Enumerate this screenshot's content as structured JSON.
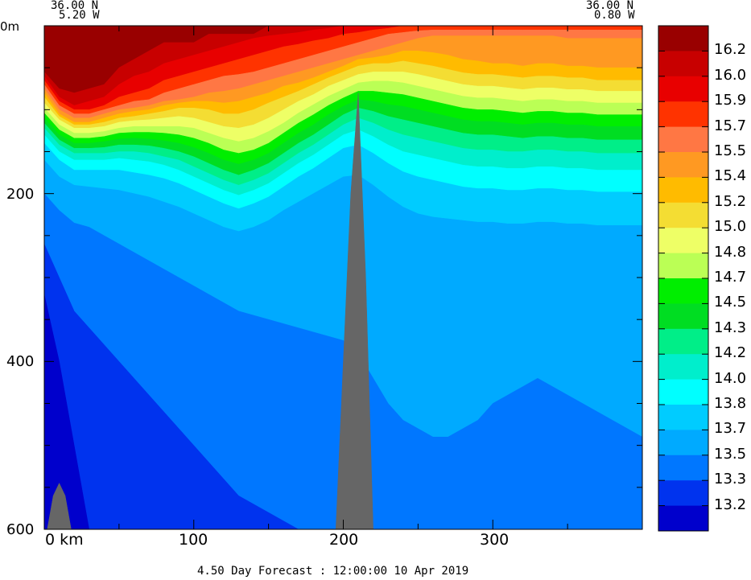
{
  "chart_data": {
    "type": "heatmap",
    "title": "",
    "xlabel": "",
    "ylabel": "",
    "xlim": [
      0,
      400
    ],
    "ylim": [
      600,
      0
    ],
    "x_unit_label": "0 km",
    "x_ticks": [
      "100",
      "200",
      "300"
    ],
    "y_ticks": [
      "0m",
      "200",
      "400",
      "600"
    ],
    "left_coord": {
      "lat": "36.00 N",
      "lon": "5.20 W"
    },
    "right_coord": {
      "lat": "36.00 N",
      "lon": "0.80 W"
    },
    "footer": "4.50 Day Forecast : 12:00:00  10 Apr 2019",
    "colorbar": {
      "labels": [
        "16.2",
        "16.0",
        "15.9",
        "15.7",
        "15.5",
        "15.4",
        "15.2",
        "15.0",
        "14.8",
        "14.7",
        "14.5",
        "14.3",
        "14.2",
        "14.0",
        "13.8",
        "13.7",
        "13.5",
        "13.3",
        "13.2"
      ],
      "colors": [
        "#990000",
        "#c80000",
        "#e80000",
        "#ff3300",
        "#ff7744",
        "#ff9922",
        "#ffbb00",
        "#f4dd33",
        "#eeff66",
        "#bbff55",
        "#00ee00",
        "#00dd22",
        "#00ee88",
        "#00eecc",
        "#00ffff",
        "#00ccff",
        "#00aaff",
        "#0077ff",
        "#0033ee",
        "#0000cc"
      ]
    },
    "x_samples": [
      0,
      10,
      20,
      30,
      40,
      50,
      60,
      70,
      80,
      90,
      100,
      110,
      120,
      130,
      140,
      150,
      160,
      170,
      180,
      190,
      200,
      210,
      220,
      230,
      240,
      250,
      260,
      270,
      280,
      290,
      300,
      310,
      320,
      330,
      340,
      350,
      360,
      370,
      380,
      390,
      400
    ],
    "isolines_depth_m": {
      "16.2": [
        55,
        75,
        80,
        75,
        70,
        50,
        40,
        30,
        20,
        20,
        20,
        10,
        10,
        10,
        10,
        0,
        0,
        0,
        0,
        0,
        0,
        0,
        0,
        0,
        0,
        0,
        0,
        0,
        0,
        0,
        0,
        0,
        0,
        0,
        0,
        0,
        0,
        0,
        0,
        0,
        0
      ],
      "16.0": [
        60,
        85,
        95,
        90,
        85,
        70,
        60,
        55,
        45,
        40,
        35,
        30,
        25,
        20,
        15,
        12,
        10,
        8,
        5,
        3,
        0,
        0,
        0,
        0,
        0,
        0,
        0,
        0,
        0,
        0,
        0,
        0,
        0,
        0,
        0,
        0,
        0,
        0,
        0,
        0,
        0
      ],
      "15.9": [
        65,
        90,
        100,
        100,
        95,
        85,
        80,
        75,
        65,
        60,
        55,
        50,
        45,
        40,
        35,
        30,
        25,
        22,
        18,
        15,
        10,
        8,
        5,
        3,
        0,
        0,
        0,
        0,
        0,
        0,
        0,
        0,
        0,
        0,
        0,
        0,
        0,
        0,
        0,
        0,
        0
      ],
      "15.7": [
        70,
        95,
        105,
        105,
        100,
        95,
        90,
        88,
        80,
        75,
        70,
        65,
        60,
        58,
        55,
        50,
        45,
        40,
        35,
        30,
        25,
        20,
        15,
        10,
        8,
        6,
        5,
        5,
        5,
        5,
        5,
        5,
        5,
        5,
        5,
        5,
        5,
        5,
        5,
        5,
        5
      ],
      "15.5": [
        75,
        100,
        110,
        110,
        105,
        100,
        98,
        95,
        90,
        88,
        85,
        80,
        78,
        75,
        70,
        65,
        60,
        55,
        50,
        45,
        40,
        35,
        30,
        25,
        20,
        15,
        12,
        12,
        12,
        12,
        12,
        12,
        12,
        12,
        12,
        15,
        15,
        15,
        15,
        15,
        15
      ],
      "15.4": [
        80,
        105,
        115,
        115,
        110,
        105,
        102,
        100,
        95,
        92,
        90,
        90,
        92,
        90,
        85,
        80,
        72,
        68,
        62,
        55,
        48,
        40,
        38,
        35,
        30,
        30,
        32,
        35,
        40,
        42,
        45,
        45,
        48,
        45,
        45,
        48,
        48,
        50,
        50,
        50,
        50
      ],
      "15.2": [
        85,
        108,
        118,
        118,
        115,
        110,
        108,
        105,
        102,
        98,
        98,
        100,
        105,
        105,
        100,
        92,
        85,
        78,
        70,
        62,
        55,
        48,
        45,
        45,
        42,
        45,
        48,
        52,
        56,
        58,
        58,
        60,
        62,
        60,
        60,
        62,
        62,
        65,
        65,
        65,
        65
      ],
      "15.0": [
        92,
        112,
        122,
        122,
        120,
        115,
        113,
        112,
        110,
        108,
        110,
        115,
        120,
        122,
        118,
        110,
        100,
        90,
        82,
        72,
        65,
        58,
        55,
        55,
        55,
        58,
        62,
        66,
        70,
        72,
        72,
        74,
        76,
        74,
        74,
        76,
        76,
        78,
        78,
        78,
        78
      ],
      "14.8": [
        98,
        118,
        128,
        128,
        126,
        122,
        120,
        120,
        120,
        120,
        122,
        128,
        134,
        138,
        134,
        126,
        116,
        104,
        94,
        84,
        76,
        68,
        66,
        66,
        68,
        72,
        76,
        80,
        84,
        86,
        86,
        88,
        90,
        88,
        88,
        90,
        90,
        92,
        92,
        92,
        92
      ],
      "14.7": [
        104,
        124,
        134,
        134,
        132,
        128,
        127,
        127,
        128,
        130,
        134,
        140,
        148,
        152,
        148,
        140,
        128,
        116,
        106,
        95,
        86,
        78,
        78,
        80,
        82,
        86,
        90,
        94,
        98,
        100,
        100,
        102,
        104,
        102,
        102,
        104,
        104,
        106,
        106,
        106,
        106
      ],
      "14.5": [
        110,
        130,
        140,
        140,
        138,
        135,
        134,
        135,
        137,
        140,
        145,
        152,
        160,
        165,
        160,
        152,
        140,
        128,
        118,
        106,
        96,
        88,
        90,
        94,
        96,
        100,
        104,
        108,
        112,
        114,
        114,
        116,
        118,
        116,
        116,
        118,
        118,
        120,
        120,
        120,
        120
      ],
      "14.3": [
        116,
        136,
        146,
        146,
        145,
        142,
        142,
        143,
        146,
        150,
        156,
        164,
        172,
        178,
        172,
        164,
        152,
        140,
        130,
        118,
        106,
        98,
        102,
        108,
        112,
        116,
        120,
        124,
        128,
        130,
        130,
        132,
        134,
        132,
        132,
        134,
        134,
        136,
        136,
        136,
        136
      ],
      "14.2": [
        122,
        142,
        152,
        152,
        152,
        150,
        150,
        152,
        156,
        160,
        168,
        176,
        184,
        190,
        184,
        176,
        164,
        152,
        142,
        130,
        118,
        110,
        116,
        124,
        130,
        134,
        138,
        142,
        146,
        148,
        148,
        150,
        150,
        148,
        148,
        150,
        150,
        152,
        152,
        152,
        152
      ],
      "14.0": [
        130,
        150,
        160,
        160,
        160,
        158,
        160,
        162,
        166,
        172,
        180,
        188,
        196,
        202,
        196,
        188,
        176,
        164,
        154,
        142,
        130,
        124,
        132,
        142,
        150,
        154,
        158,
        162,
        166,
        168,
        168,
        170,
        170,
        168,
        168,
        170,
        170,
        172,
        172,
        172,
        172
      ],
      "13.8": [
        140,
        160,
        172,
        172,
        172,
        172,
        175,
        178,
        182,
        188,
        196,
        204,
        212,
        218,
        212,
        204,
        192,
        180,
        170,
        158,
        146,
        142,
        152,
        164,
        174,
        180,
        184,
        188,
        192,
        194,
        194,
        196,
        196,
        194,
        194,
        196,
        196,
        198,
        198,
        198,
        198
      ],
      "13.7": [
        160,
        180,
        190,
        192,
        194,
        196,
        200,
        204,
        210,
        216,
        224,
        232,
        240,
        245,
        240,
        232,
        220,
        210,
        200,
        190,
        180,
        178,
        190,
        204,
        216,
        224,
        228,
        230,
        232,
        234,
        234,
        236,
        236,
        234,
        234,
        236,
        236,
        238,
        238,
        238,
        238
      ],
      "13.5": [
        200,
        220,
        235,
        240,
        250,
        260,
        270,
        280,
        290,
        300,
        310,
        320,
        330,
        340,
        345,
        350,
        355,
        360,
        365,
        370,
        375,
        390,
        420,
        450,
        470,
        480,
        490,
        490,
        480,
        470,
        450,
        440,
        430,
        420,
        430,
        440,
        450,
        460,
        470,
        480,
        490
      ],
      "13.3": [
        260,
        300,
        340,
        360,
        380,
        400,
        420,
        440,
        460,
        480,
        500,
        520,
        540,
        560,
        570,
        580,
        590,
        600,
        600,
        600,
        600,
        600,
        600,
        600,
        600,
        600,
        600,
        600,
        600,
        600,
        600,
        600,
        600,
        600,
        600,
        600,
        600,
        600,
        600,
        600,
        600
      ],
      "13.2": [
        320,
        400,
        500,
        600,
        600,
        600,
        600,
        600,
        600,
        600,
        600,
        600,
        600,
        600,
        600,
        600,
        600,
        600,
        600,
        600,
        600,
        600,
        600,
        600,
        600,
        600,
        600,
        600,
        600,
        600,
        600,
        600,
        600,
        600,
        600,
        600,
        600,
        600,
        600,
        600,
        600
      ]
    },
    "bathymetry_mask": [
      {
        "x": [
          2,
          6,
          10,
          14,
          18
        ],
        "top_depth": [
          600,
          560,
          545,
          560,
          600
        ]
      },
      {
        "x": [
          195,
          200,
          205,
          210,
          215,
          220
        ],
        "top_depth": [
          600,
          400,
          200,
          80,
          300,
          600
        ]
      }
    ],
    "color_mask": "#666666"
  }
}
